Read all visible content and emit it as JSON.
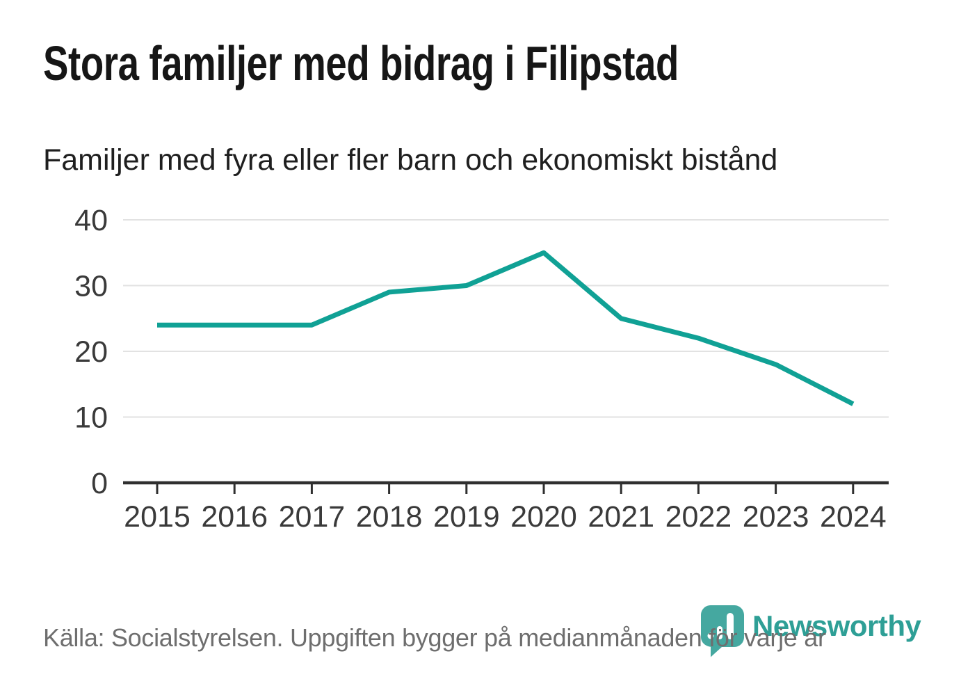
{
  "chart_data": {
    "type": "line",
    "title": "Stora familjer med bidrag i Filipstad",
    "subtitle": "Familjer med fyra eller fler barn och ekonomiskt bistånd",
    "categories": [
      "2015",
      "2016",
      "2017",
      "2018",
      "2019",
      "2020",
      "2021",
      "2022",
      "2023",
      "2024"
    ],
    "series": [
      {
        "name": "Familjer med fyra eller fler barn och ekonomiskt bistånd",
        "values": [
          24,
          24,
          24,
          29,
          30,
          35,
          25,
          22,
          18,
          12
        ]
      }
    ],
    "xlabel": "",
    "ylabel": "",
    "ylim": [
      0,
      40
    ],
    "yticks": [
      0,
      10,
      20,
      30,
      40
    ],
    "grid": "horizontal",
    "legend": "none",
    "line_color": "#10A195",
    "grid_color": "#e2e2e2",
    "axis_color": "#2f2f2f",
    "tick_label_color": "#3a3a3a"
  },
  "footer": {
    "source": "Källa: Socialstyrelsen. Uppgiften bygger på medianmånaden för varje år",
    "brand": "Newsworthy",
    "brand_color": "#2E9F96",
    "brand_icon_color": "#45A8A0",
    "brand_icon": "speech-bubble-bar-chart"
  }
}
